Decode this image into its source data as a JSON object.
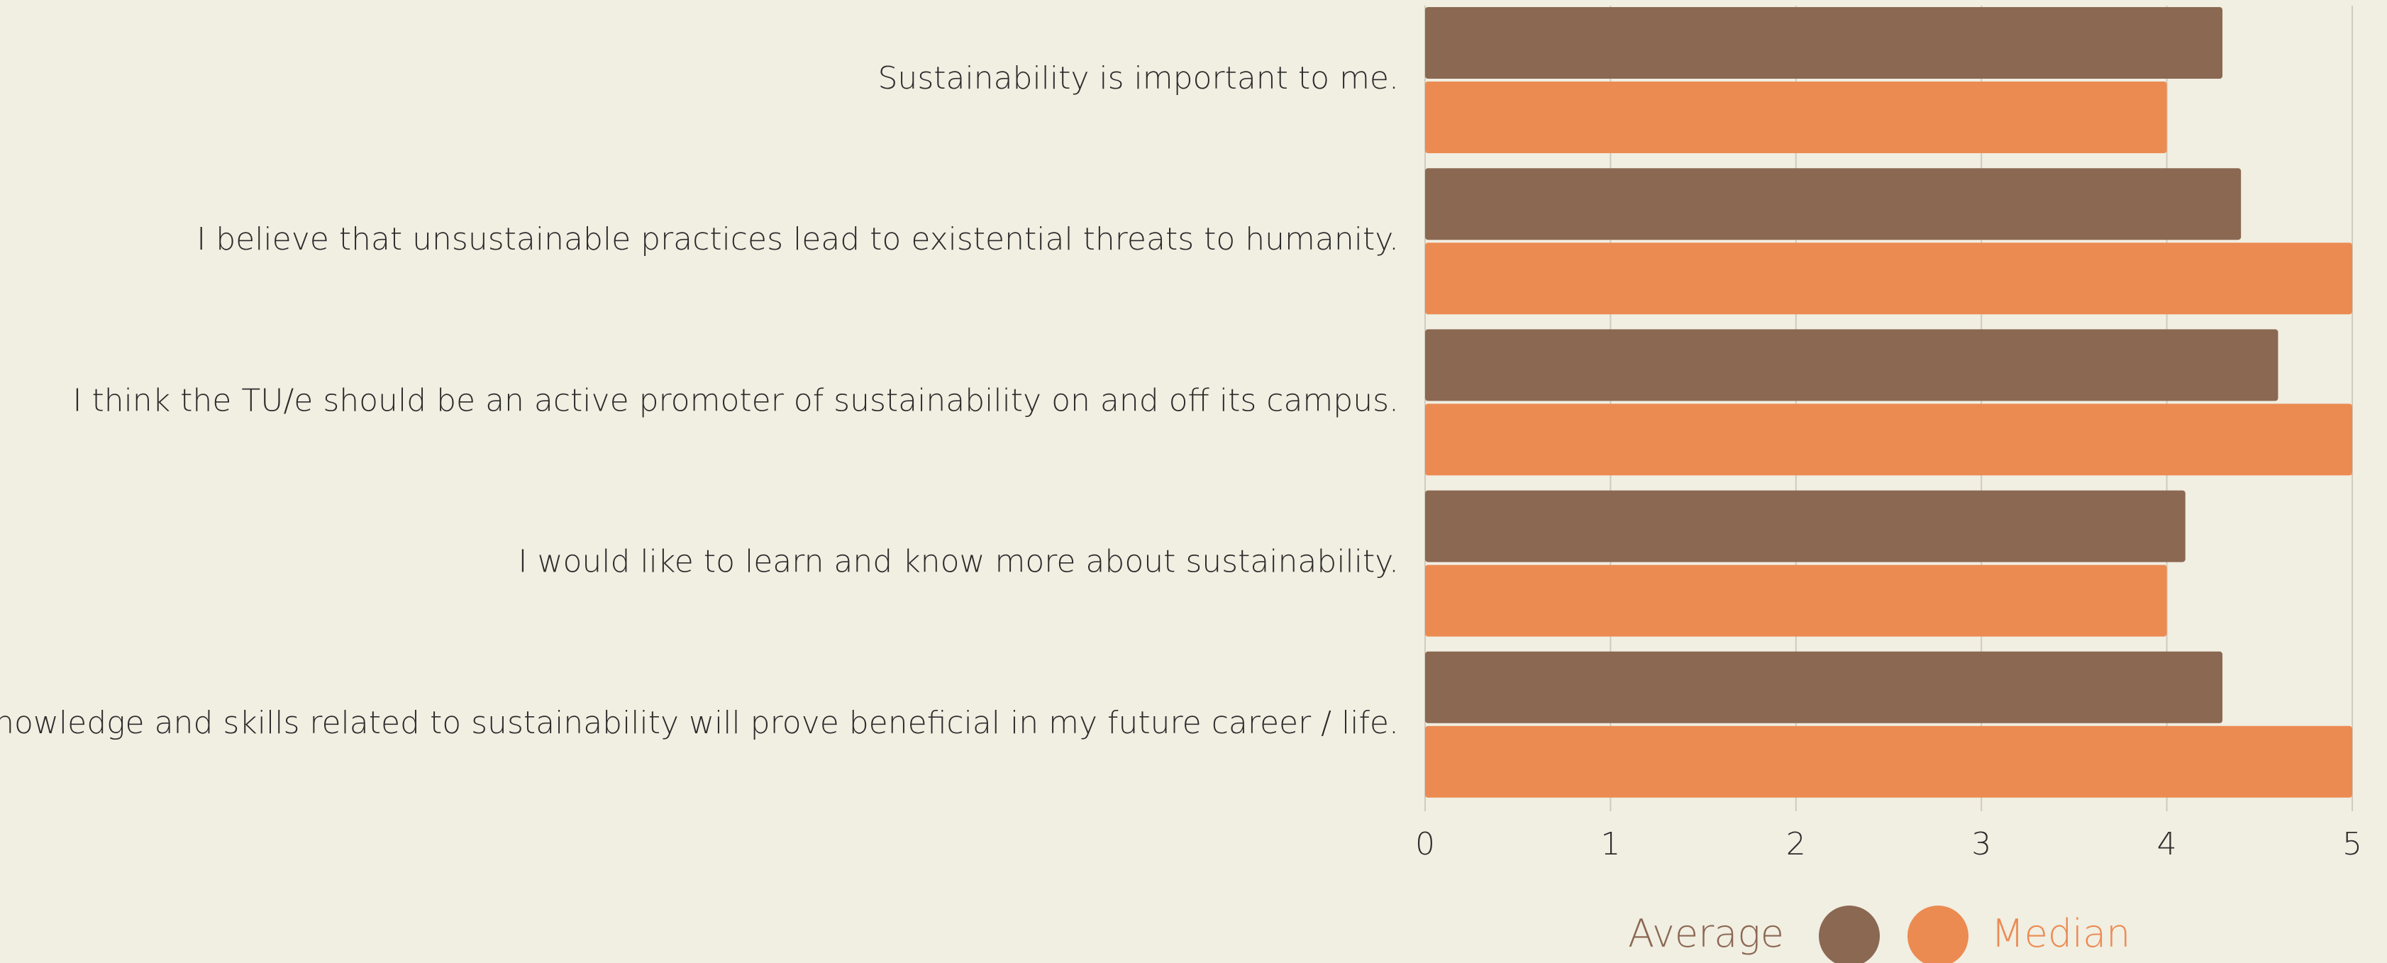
{
  "chart_data": {
    "type": "bar",
    "orientation": "horizontal",
    "categories": [
      "Sustainability is important to me.",
      "I believe that unsustainable practices lead to existential threats to humanity.",
      "I think the TU/e should be an active promoter of sustainability on and off its campus.",
      "I would like to learn and know more about sustainability.",
      "Explicit knowledge and skills related to sustainability will prove beneficial in my future career / life."
    ],
    "series": [
      {
        "name": "Average",
        "color": "#8b6852",
        "values": [
          4.3,
          4.4,
          4.6,
          4.1,
          4.3
        ]
      },
      {
        "name": "Median",
        "color": "#eb8b52",
        "values": [
          4,
          5,
          5,
          4,
          5
        ]
      }
    ],
    "xlim": [
      0,
      5
    ],
    "xticks": [
      0,
      1,
      2,
      3,
      4,
      5
    ],
    "grid": true,
    "legend": "bottom"
  }
}
